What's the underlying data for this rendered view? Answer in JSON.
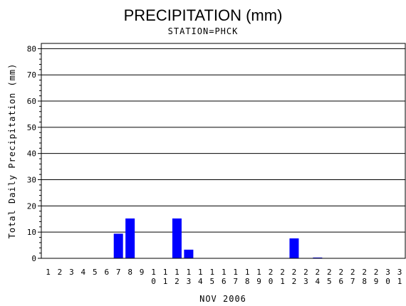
{
  "chart_data": {
    "type": "bar",
    "title": "PRECIPITATION (mm)",
    "subtitle": "STATION=PHCK",
    "ylabel": "Total Daily Precipitation (mm)",
    "xlabel": "NOV 2006",
    "ylim": [
      0,
      82
    ],
    "yticks": [
      0,
      10,
      20,
      30,
      40,
      50,
      60,
      70,
      80
    ],
    "grid": true,
    "bar_color": "#0000ff",
    "categories": [
      "1",
      "2",
      "3",
      "4",
      "5",
      "6",
      "7",
      "8",
      "9",
      "10",
      "11",
      "12",
      "13",
      "14",
      "15",
      "16",
      "17",
      "18",
      "19",
      "20",
      "21",
      "22",
      "23",
      "24",
      "25",
      "26",
      "27",
      "28",
      "29",
      "30",
      "31"
    ],
    "values": [
      0,
      0,
      0,
      0,
      0,
      0,
      9.4,
      15.2,
      0,
      0,
      0,
      15.2,
      3.3,
      0,
      0,
      0,
      0,
      0,
      0,
      0,
      0,
      7.6,
      0,
      0.3,
      0,
      0,
      0,
      0,
      0,
      0,
      0
    ]
  }
}
